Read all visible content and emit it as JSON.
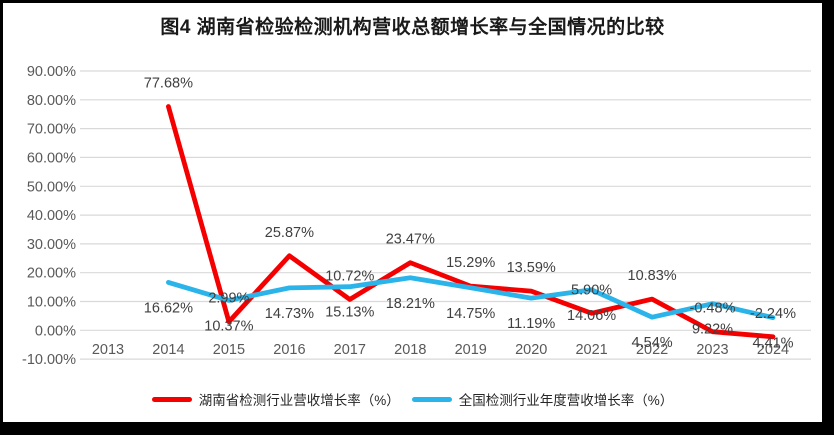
{
  "title": "图4 湖南省检验检测机构营收总额增长率与全国情况的比较",
  "colors": {
    "hunan_line": "#f40000",
    "national_line": "#2bb4e9",
    "gridline": "#d9d9d9",
    "axis_text": "#595959",
    "data_label_text": "#404040",
    "frame": "#000000",
    "background": "#ffffff"
  },
  "chart_data": {
    "type": "line",
    "title": "图4 湖南省检验检测机构营收总额增长率与全国情况的比较",
    "categories": [
      "2013",
      "2014",
      "2015",
      "2016",
      "2017",
      "2018",
      "2019",
      "2020",
      "2021",
      "2022",
      "2023",
      "2024"
    ],
    "series": [
      {
        "name": "湖南省检测行业营收增长率（%）",
        "color": "#f40000",
        "label_position": "above",
        "values": [
          null,
          77.68,
          2.99,
          25.87,
          10.72,
          23.47,
          15.29,
          13.59,
          5.9,
          10.83,
          -0.48,
          -2.24
        ]
      },
      {
        "name": "全国检测行业年度营收增长率（%）",
        "color": "#2bb4e9",
        "label_position": "below",
        "values": [
          null,
          16.62,
          10.37,
          14.73,
          15.13,
          18.21,
          14.75,
          11.19,
          14.06,
          4.54,
          9.22,
          4.41
        ]
      }
    ],
    "ylim": [
      -10,
      90
    ],
    "y_tick_values": [
      90,
      80,
      70,
      60,
      50,
      40,
      30,
      20,
      10,
      0,
      -10
    ],
    "y_tick_labels": [
      "90.00%",
      "80.00%",
      "70.00%",
      "60.00%",
      "50.00%",
      "40.00%",
      "30.00%",
      "20.00%",
      "10.00%",
      "0.00%",
      "-10.00%"
    ],
    "x_tick_labels": [
      "2013",
      "2014",
      "2015",
      "2016",
      "2017",
      "2018",
      "2019",
      "2020",
      "2021",
      "2022",
      "2023",
      "2024"
    ],
    "grid": true,
    "markers": false,
    "data_label_format": "0.00%",
    "legend_position": "bottom"
  }
}
